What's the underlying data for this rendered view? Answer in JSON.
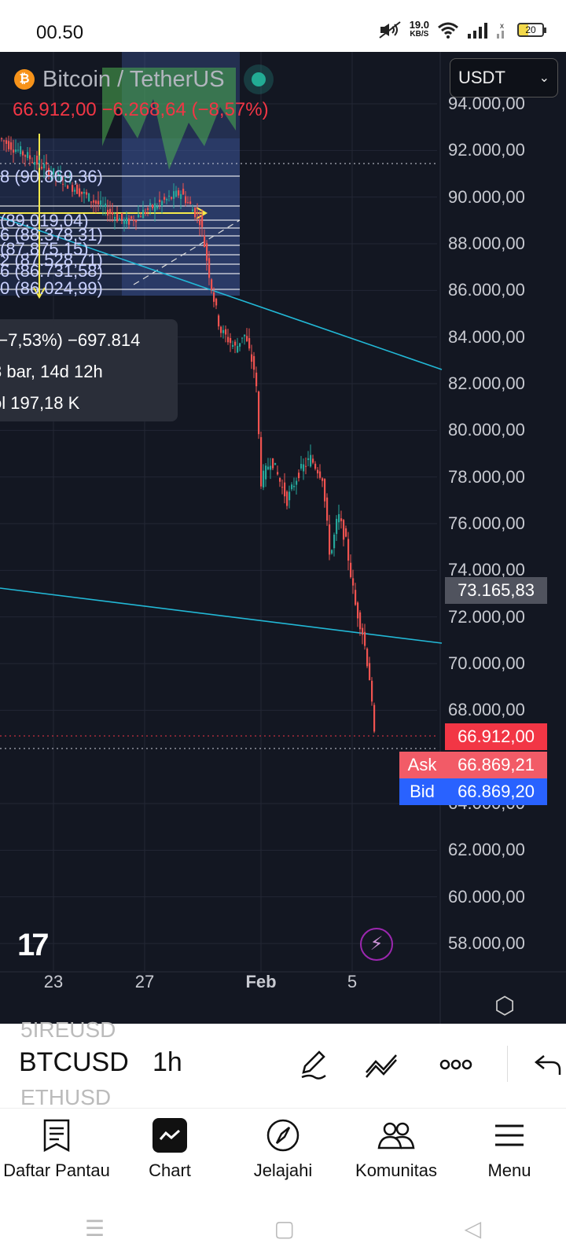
{
  "status_bar": {
    "time": "00.50",
    "net_speed": "19.0",
    "net_unit": "KB/S",
    "battery": "20"
  },
  "header": {
    "pair_title": "Bitcoin / TetherUS",
    "coin_icon": "bitcoin-icon",
    "price_change": "66.912,00 −6.268,64 (−8,57%)",
    "currency_select": "USDT"
  },
  "fib_labels": [
    "8 (90.869,36)",
    "(89.019,04)",
    "6 (88.378,31)",
    "(87.875,15)",
    "2 (87.528,71)",
    "6 (86.731,58)",
    "0 (86.024,99)"
  ],
  "tooltip": {
    "line1": "(−7,53%) −697.814",
    "line2": "3 bar, 14d 12h",
    "line3": "ol 197,18 K"
  },
  "price_axis": [
    "94.000,00",
    "92.000,00",
    "90.000,00",
    "88.000,00",
    "86.000,00",
    "84.000,00",
    "82.000,00",
    "80.000,00",
    "78.000,00",
    "76.000,00",
    "74.000,00",
    "72.000,00",
    "70.000,00",
    "68.000,00",
    "64.000,00",
    "62.000,00",
    "60.000,00",
    "58.000,00"
  ],
  "price_tags": {
    "crosshair": "73.165,83",
    "last": "66.912,00",
    "ask_label": "Ask",
    "ask": "66.869,21",
    "bid_label": "Bid",
    "bid": "66.869,20"
  },
  "time_axis": [
    "23",
    "27",
    "Feb",
    "5"
  ],
  "colors": {
    "chart_bg": "#131722",
    "up": "#26a69a",
    "down": "#ef5350",
    "trendline": "#22b8d6",
    "fib": "#ffffff",
    "measure": "#f5e94b",
    "last_price": "#f23645",
    "bid": "#2962ff"
  },
  "toolbar": {
    "symbol_above": "5IREUSD",
    "symbol": "BTCUSD",
    "symbol_below": "ETHUSD",
    "interval": "1h"
  },
  "bottom_nav": [
    {
      "label": "Daftar Pantau",
      "icon": "watchlist-icon"
    },
    {
      "label": "Chart",
      "icon": "chart-icon"
    },
    {
      "label": "Jelajahi",
      "icon": "compass-icon"
    },
    {
      "label": "Komunitas",
      "icon": "community-icon"
    },
    {
      "label": "Menu",
      "icon": "menu-icon"
    }
  ]
}
